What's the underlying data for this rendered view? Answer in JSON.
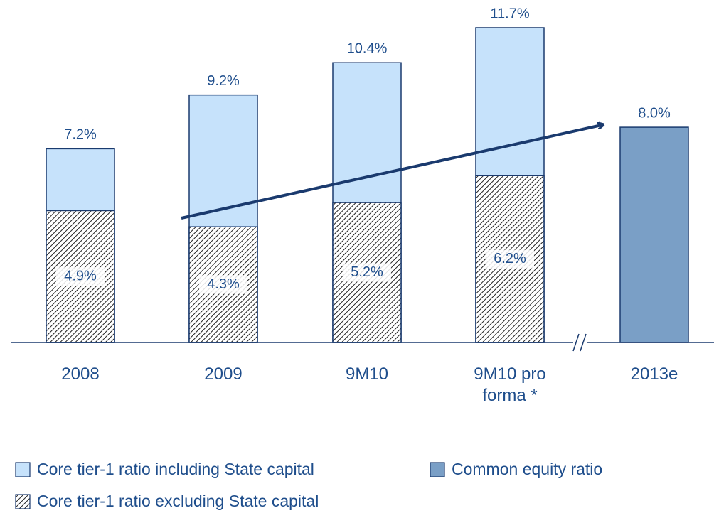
{
  "chart_data": {
    "type": "bar",
    "categories": [
      "2008",
      "2009",
      "9M10",
      "9M10 pro forma *",
      "2013e"
    ],
    "series": [
      {
        "name": "Core tier-1 ratio including State capital",
        "color": "#c6e2fb",
        "values": [
          7.2,
          9.2,
          10.4,
          11.7,
          null
        ],
        "value_labels": [
          "7.2%",
          "9.2%",
          "10.4%",
          "11.7%",
          null
        ]
      },
      {
        "name": "Core tier-1 ratio excluding State capital",
        "color": "hatch",
        "values": [
          4.9,
          4.3,
          5.2,
          6.2,
          null
        ],
        "value_labels": [
          "4.9%",
          "4.3%",
          "5.2%",
          "6.2%",
          null
        ]
      },
      {
        "name": "Common equity ratio",
        "color": "#7a9fc6",
        "values": [
          null,
          null,
          null,
          null,
          8.0
        ],
        "value_labels": [
          null,
          null,
          null,
          null,
          "8.0%"
        ]
      }
    ]
  }
}
